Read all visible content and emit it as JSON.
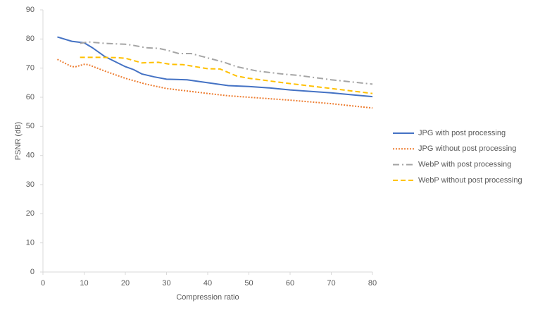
{
  "chart_data": {
    "type": "line",
    "xlabel": "Compression ratio",
    "ylabel": "PSNR (dB)",
    "xlim": [
      0,
      80
    ],
    "xticks": [
      0,
      10,
      20,
      30,
      40,
      50,
      60,
      70,
      80
    ],
    "ylim": [
      0,
      90
    ],
    "yticks": [
      0,
      10,
      20,
      30,
      40,
      50,
      60,
      70,
      80,
      90
    ],
    "legend": "right",
    "series": [
      {
        "name": "JPG with post processing",
        "color": "#4472c4",
        "dash": "solid",
        "x": [
          3.5,
          7,
          10,
          12,
          15,
          20,
          22,
          24,
          27,
          30,
          35,
          40,
          45,
          50,
          55,
          60,
          70,
          80
        ],
        "values": [
          80.7,
          79.2,
          78.7,
          77,
          74,
          70.5,
          69.5,
          68,
          67,
          66.2,
          66,
          65,
          64,
          63.7,
          63.2,
          62.5,
          61.5,
          60.2
        ]
      },
      {
        "name": "JPG without post processing",
        "color": "#ed7d31",
        "dash": "dot",
        "x": [
          3.5,
          7,
          8,
          10,
          11,
          15,
          20,
          25,
          30,
          40,
          45,
          50,
          60,
          70,
          80
        ],
        "values": [
          73,
          70.5,
          70.5,
          71.3,
          71.2,
          69,
          66.5,
          64.5,
          63,
          61.3,
          60.5,
          60,
          59,
          57.8,
          56.3
        ]
      },
      {
        "name": "WebP with post processing",
        "color": "#a5a5a5",
        "dash": "dashdot",
        "x": [
          9,
          11,
          15,
          20,
          22,
          25,
          28,
          30,
          33,
          36,
          40,
          44,
          47,
          52,
          58,
          62,
          70,
          80
        ],
        "values": [
          78.5,
          79,
          78.5,
          78.2,
          77.8,
          77,
          76.8,
          76.2,
          75,
          75,
          73.5,
          72,
          70.5,
          69,
          68,
          67.5,
          66,
          64.5
        ]
      },
      {
        "name": "WebP without post processing",
        "color": "#ffc000",
        "dash": "dash",
        "x": [
          9,
          14,
          18,
          20,
          24,
          28,
          31,
          34,
          40,
          43,
          47,
          50,
          60,
          70,
          80
        ],
        "values": [
          73.7,
          73.7,
          73.6,
          73.4,
          71.8,
          72,
          71.3,
          71.2,
          69.8,
          69.7,
          67.3,
          66.5,
          64.7,
          63,
          61.3
        ]
      }
    ]
  }
}
